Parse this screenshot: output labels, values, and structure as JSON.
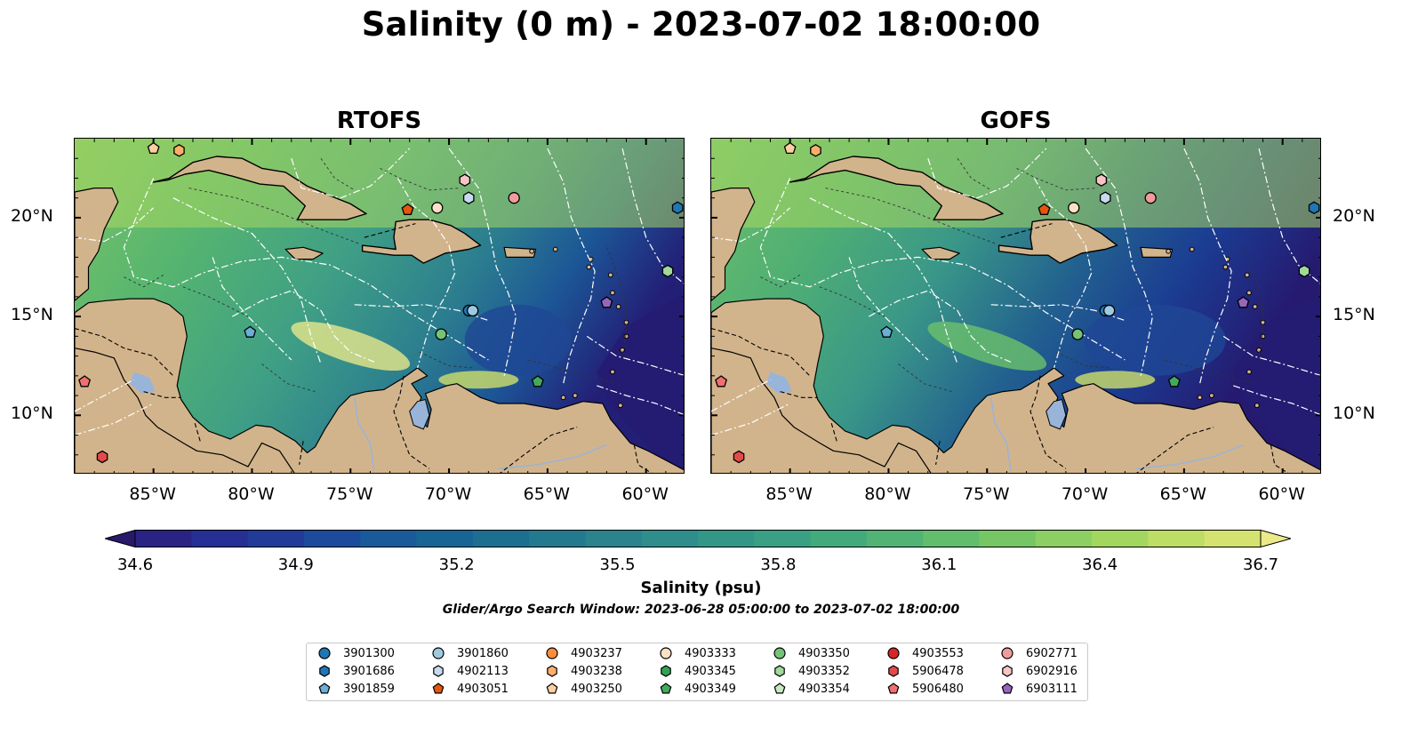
{
  "title": "Salinity (0 m) - 2023-07-02 18:00:00",
  "panels": [
    {
      "name": "RTOFS"
    },
    {
      "name": "GOFS"
    }
  ],
  "x_ticks": [
    "85°W",
    "80°W",
    "75°W",
    "70°W",
    "65°W",
    "60°W"
  ],
  "y_ticks": [
    "20°N",
    "15°N",
    "10°N"
  ],
  "colorbar": {
    "label": "Salinity (psu)",
    "min": 34.6,
    "max": 36.7,
    "ticks": [
      "34.6",
      "34.9",
      "35.2",
      "35.5",
      "35.8",
      "36.1",
      "36.4",
      "36.7"
    ],
    "colors": [
      "#28196b",
      "#2a2384",
      "#262f93",
      "#223b99",
      "#1d4b9b",
      "#185a9a",
      "#166595",
      "#1c6f91",
      "#237a8f",
      "#2a838d",
      "#2f8d8b",
      "#339788",
      "#39a083",
      "#43aa7c",
      "#51b474",
      "#62bd6d",
      "#76c666",
      "#8ccf62",
      "#a3d65f",
      "#bddd64",
      "#d4e370",
      "#ebe98a"
    ]
  },
  "search_window": "Glider/Argo Search Window: 2023-06-28 05:00:00 to 2023-07-02 18:00:00",
  "legend": [
    {
      "id": "3901300",
      "marker": "circle",
      "color": "#1f77b4"
    },
    {
      "id": "3901686",
      "marker": "hexagon",
      "color": "#1f77b4"
    },
    {
      "id": "3901859",
      "marker": "pentagon",
      "color": "#6baed6"
    },
    {
      "id": "3901860",
      "marker": "circle",
      "color": "#9ecae1"
    },
    {
      "id": "4902113",
      "marker": "hexagon",
      "color": "#c6dbef"
    },
    {
      "id": "4903051",
      "marker": "pentagon",
      "color": "#e6550d"
    },
    {
      "id": "4903237",
      "marker": "circle",
      "color": "#fd8d3c"
    },
    {
      "id": "4903238",
      "marker": "hexagon",
      "color": "#fdae6b"
    },
    {
      "id": "4903250",
      "marker": "pentagon",
      "color": "#fdd0a2"
    },
    {
      "id": "4903333",
      "marker": "circle",
      "color": "#fde0c5"
    },
    {
      "id": "4903345",
      "marker": "hexagon",
      "color": "#31a354"
    },
    {
      "id": "4903349",
      "marker": "pentagon",
      "color": "#41ab5d"
    },
    {
      "id": "4903350",
      "marker": "circle",
      "color": "#74c476"
    },
    {
      "id": "4903352",
      "marker": "hexagon",
      "color": "#a1d99b"
    },
    {
      "id": "4903354",
      "marker": "pentagon",
      "color": "#c7e9c0"
    },
    {
      "id": "4903553",
      "marker": "circle",
      "color": "#d62728"
    },
    {
      "id": "5906478",
      "marker": "hexagon",
      "color": "#e34a4a"
    },
    {
      "id": "5906480",
      "marker": "pentagon",
      "color": "#f07070"
    },
    {
      "id": "6902771",
      "marker": "circle",
      "color": "#f29b9b"
    },
    {
      "id": "6902916",
      "marker": "hexagon",
      "color": "#f7c4c4"
    },
    {
      "id": "6903111",
      "marker": "pentagon",
      "color": "#9467bd"
    }
  ],
  "floats": [
    {
      "id": "3901300",
      "lon": -69.0,
      "lat": 15.3
    },
    {
      "id": "3901686",
      "lon": -58.4,
      "lat": 20.5
    },
    {
      "id": "3901859",
      "lon": -80.1,
      "lat": 14.2
    },
    {
      "id": "3901860",
      "lon": -68.8,
      "lat": 15.3
    },
    {
      "id": "4902113",
      "lon": -69.0,
      "lat": 21.0
    },
    {
      "id": "4903051",
      "lon": -72.1,
      "lat": 20.4
    },
    {
      "id": "4903238",
      "lon": -83.7,
      "lat": 23.4
    },
    {
      "id": "4903250",
      "lon": -85.0,
      "lat": 23.5
    },
    {
      "id": "4903333",
      "lon": -70.6,
      "lat": 20.5
    },
    {
      "id": "4903349",
      "lon": -65.5,
      "lat": 11.7
    },
    {
      "id": "4903350",
      "lon": -70.4,
      "lat": 14.1
    },
    {
      "id": "4903352",
      "lon": -58.9,
      "lat": 17.3
    },
    {
      "id": "5906478",
      "lon": -87.6,
      "lat": 7.9
    },
    {
      "id": "5906480",
      "lon": -88.5,
      "lat": 11.7
    },
    {
      "id": "6902771",
      "lon": -66.7,
      "lat": 21.0
    },
    {
      "id": "6902916",
      "lon": -69.2,
      "lat": 21.9
    },
    {
      "id": "6903111",
      "lon": -62.0,
      "lat": 15.7
    }
  ]
}
